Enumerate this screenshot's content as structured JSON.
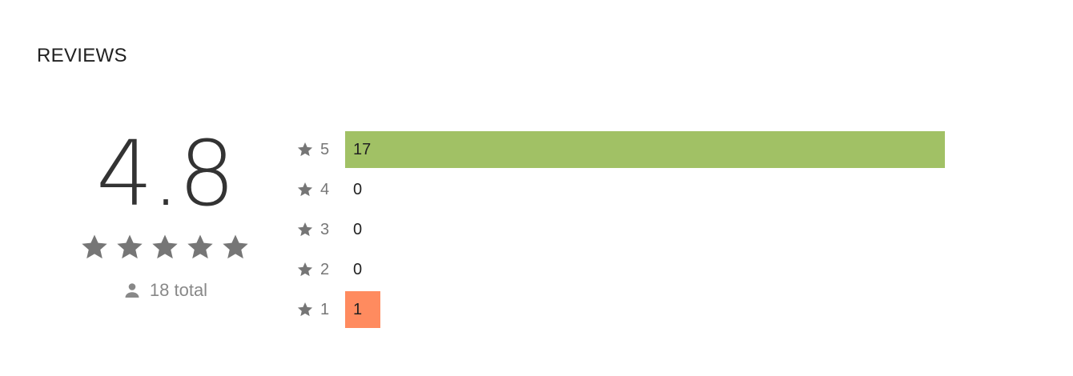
{
  "section_title": "REVIEWS",
  "rating": {
    "average": "4.8",
    "stars_filled": 5,
    "total_text": "18 total",
    "total_icon": "person-icon"
  },
  "colors": {
    "star": "#767676",
    "bar_high": "#a1c165",
    "bar_low": "#ff8b5f"
  },
  "distribution": [
    {
      "stars": "5",
      "count": "17",
      "fraction": 1.0,
      "color": "#a1c165"
    },
    {
      "stars": "4",
      "count": "0",
      "fraction": 0,
      "color": "#a1c165"
    },
    {
      "stars": "3",
      "count": "0",
      "fraction": 0,
      "color": "#a1c165"
    },
    {
      "stars": "2",
      "count": "0",
      "fraction": 0,
      "color": "#ff8b5f"
    },
    {
      "stars": "1",
      "count": "1",
      "fraction": 0.0588,
      "color": "#ff8b5f"
    }
  ]
}
